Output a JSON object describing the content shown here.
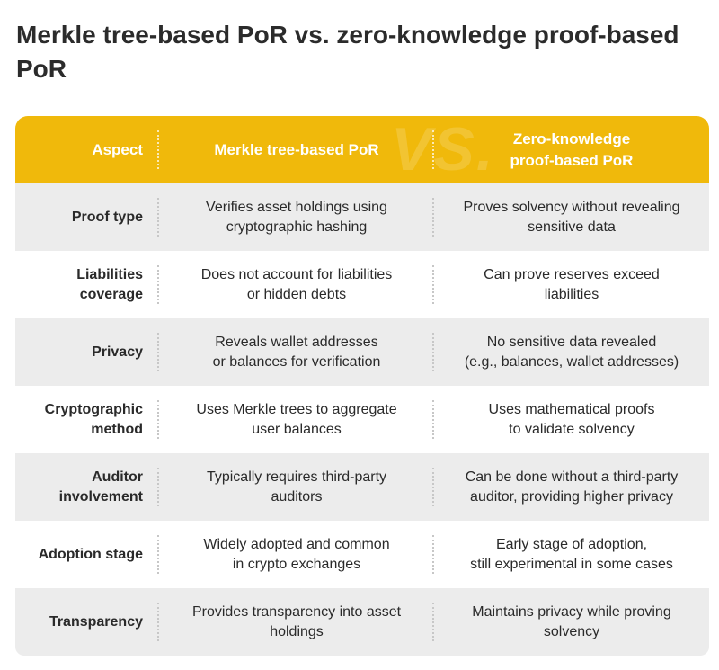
{
  "title": "Merkle tree-based PoR vs. zero-knowledge proof-based PoR",
  "colors": {
    "accent": "#f0b90b",
    "shaded_row": "#ececec",
    "title_text": "#2b2b2b"
  },
  "header": {
    "aspect": "Aspect",
    "merkle": "Merkle tree-based PoR",
    "zk": "Zero-knowledge\nproof-based PoR",
    "vs": "VS."
  },
  "rows": [
    {
      "aspect": "Proof type",
      "merkle": "Verifies asset holdings using\ncryptographic hashing",
      "zk": "Proves solvency without revealing\nsensitive data"
    },
    {
      "aspect": "Liabilities\ncoverage",
      "merkle": "Does not account for liabilities\nor hidden debts",
      "zk": "Can prove reserves exceed\nliabilities"
    },
    {
      "aspect": "Privacy",
      "merkle": "Reveals wallet addresses\nor balances for verification",
      "zk": "No sensitive data revealed\n(e.g., balances, wallet addresses)"
    },
    {
      "aspect": "Cryptographic\nmethod",
      "merkle": "Uses Merkle trees to aggregate\nuser balances",
      "zk": "Uses mathematical proofs\nto validate solvency"
    },
    {
      "aspect": "Auditor\ninvolvement",
      "merkle": "Typically requires third-party\nauditors",
      "zk": "Can be done without a third-party\nauditor, providing higher privacy"
    },
    {
      "aspect": "Adoption stage",
      "merkle": "Widely adopted and common\nin crypto exchanges",
      "zk": "Early stage of adoption,\nstill experimental in some cases"
    },
    {
      "aspect": "Transparency",
      "merkle": "Provides transparency into asset\nholdings",
      "zk": "Maintains privacy while proving\nsolvency"
    }
  ]
}
